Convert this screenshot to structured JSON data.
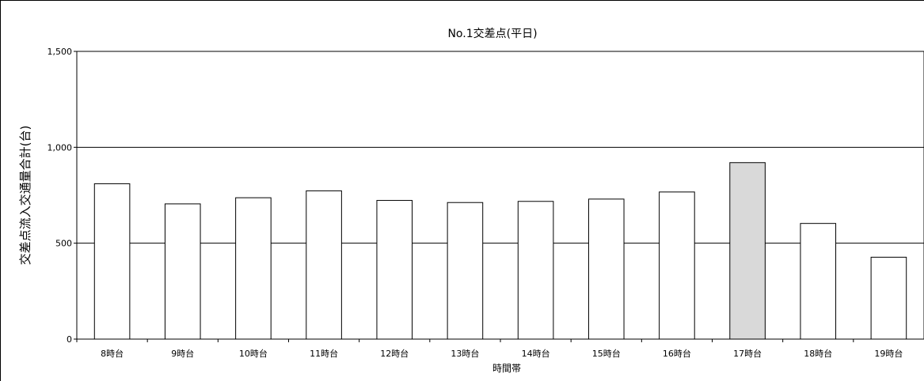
{
  "chart_data": {
    "type": "bar",
    "title": "No.1交差点(平日)",
    "xlabel": "時間帯",
    "ylabel": "交差点流入交通量合計(台)",
    "categories": [
      "8時台",
      "9時台",
      "10時台",
      "11時台",
      "12時台",
      "13時台",
      "14時台",
      "15時台",
      "16時台",
      "17時台",
      "18時台",
      "19時台"
    ],
    "values": [
      810,
      705,
      737,
      773,
      723,
      712,
      718,
      730,
      767,
      920,
      603,
      427
    ],
    "ylim": [
      0,
      1500
    ],
    "yticks": [
      0,
      500,
      1000,
      1500
    ],
    "ytick_labels": [
      "0",
      "500",
      "1,000",
      "1,500"
    ],
    "grid": "horizontal",
    "colors": {
      "bar": "#ffffff",
      "bar_highlight": "#d9d9d9",
      "highlight_category": "17時台",
      "stroke": "#000000"
    }
  }
}
